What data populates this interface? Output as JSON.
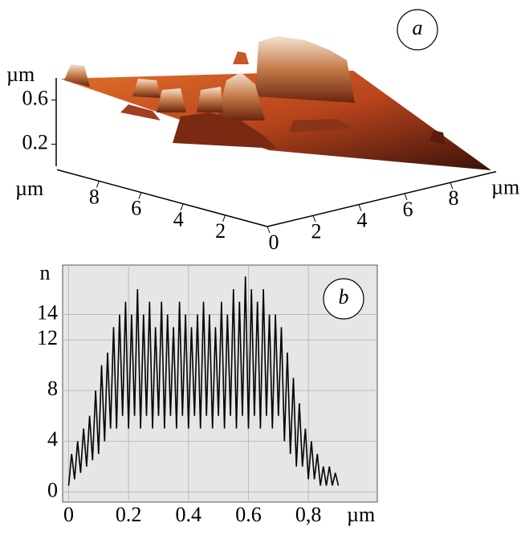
{
  "chart_data": [
    {
      "type": "surface",
      "annotation": "a",
      "xlabel": "µm",
      "ylabel": "µm",
      "zlabel": "µm",
      "xlim": [
        0,
        10
      ],
      "ylim": [
        0,
        10
      ],
      "zlim": [
        0,
        0.8
      ],
      "xticks": [
        0,
        2,
        4,
        6,
        8
      ],
      "yticks": [
        2,
        4,
        6,
        8
      ],
      "zticks": [
        0.2,
        0.6
      ]
    },
    {
      "type": "line",
      "annotation": "b",
      "xlabel": "µm",
      "ylabel": "n",
      "color": "#000000",
      "grid": true,
      "xlim": [
        -0.02,
        1.03
      ],
      "ylim": [
        -0.8,
        17.9
      ],
      "xticks": [
        0,
        0.2,
        0.4,
        0.6,
        {
          "value": 0.8,
          "label": "0,8"
        }
      ],
      "yticks": [
        0,
        4,
        8,
        12,
        14
      ],
      "x": [
        0,
        0.01,
        0.02,
        0.03,
        0.04,
        0.05,
        0.06,
        0.07,
        0.08,
        0.09,
        0.1,
        0.11,
        0.12,
        0.13,
        0.14,
        0.15,
        0.16,
        0.17,
        0.18,
        0.19,
        0.2,
        0.21,
        0.22,
        0.23,
        0.24,
        0.25,
        0.26,
        0.27,
        0.28,
        0.29,
        0.3,
        0.31,
        0.32,
        0.33,
        0.34,
        0.35,
        0.36,
        0.37,
        0.38,
        0.39,
        0.4,
        0.41,
        0.42,
        0.43,
        0.44,
        0.45,
        0.46,
        0.47,
        0.48,
        0.49,
        0.5,
        0.51,
        0.52,
        0.53,
        0.54,
        0.55,
        0.56,
        0.57,
        0.58,
        0.59,
        0.6,
        0.61,
        0.62,
        0.63,
        0.64,
        0.65,
        0.66,
        0.67,
        0.68,
        0.69,
        0.7,
        0.71,
        0.72,
        0.73,
        0.74,
        0.75,
        0.76,
        0.77,
        0.78,
        0.79,
        0.8,
        0.81,
        0.82,
        0.83,
        0.84,
        0.85,
        0.86,
        0.87,
        0.88,
        0.89,
        0.9
      ],
      "values": [
        0.5,
        3,
        1,
        4,
        1.5,
        5,
        2,
        6,
        2.5,
        8,
        3,
        10,
        4,
        11,
        5,
        13,
        5,
        14,
        6,
        15,
        5,
        14,
        6,
        16,
        5,
        14,
        6,
        15,
        5,
        13,
        6,
        15,
        5,
        14,
        6,
        13,
        5,
        15,
        6,
        14,
        5,
        13,
        6,
        14,
        5,
        15,
        6,
        14,
        5,
        13,
        6,
        15,
        5,
        14,
        6,
        16,
        5,
        15,
        6,
        17,
        5,
        16,
        6,
        15,
        5,
        16,
        6,
        14,
        5,
        14,
        6,
        13,
        4,
        11,
        3,
        9,
        2,
        7,
        2,
        5,
        1,
        4,
        1,
        3,
        0.5,
        2,
        0.5,
        2,
        0.5,
        1.5,
        0.5
      ]
    }
  ]
}
